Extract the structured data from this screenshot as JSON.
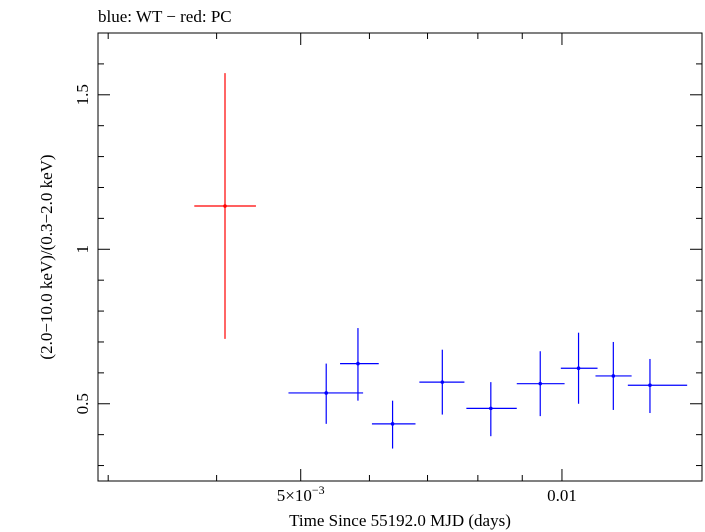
{
  "chart_data": {
    "type": "scatter",
    "title": "blue: WT − red: PC",
    "xlabel": "Time Since 55192.0 MJD (days)",
    "ylabel": "(2.0−10.0 keV)/(0.3−2.0 keV)",
    "x_scale": "log",
    "xlim": [
      0.00292,
      0.0145
    ],
    "ylim": [
      0.25,
      1.7
    ],
    "x_ticks": [
      {
        "value": 0.005,
        "label_main": "5×10",
        "label_exp": "−3"
      },
      {
        "value": 0.01,
        "label_main": "0.01",
        "label_exp": ""
      }
    ],
    "y_ticks": [
      {
        "value": 0.5,
        "label": "0.5"
      },
      {
        "value": 1.0,
        "label": "1"
      },
      {
        "value": 1.5,
        "label": "1.5"
      }
    ],
    "grid": false,
    "series": [
      {
        "name": "PC",
        "color": "#ff0000",
        "points": [
          {
            "x": 0.00409,
            "xlo": 0.00377,
            "xhi": 0.00444,
            "y": 1.14,
            "ylo": 0.71,
            "yhi": 1.57
          }
        ]
      },
      {
        "name": "WT",
        "color": "#0000ff",
        "points": [
          {
            "x": 0.00535,
            "xlo": 0.00484,
            "xhi": 0.0059,
            "y": 0.535,
            "ylo": 0.435,
            "yhi": 0.63
          },
          {
            "x": 0.00582,
            "xlo": 0.00555,
            "xhi": 0.00615,
            "y": 0.63,
            "ylo": 0.51,
            "yhi": 0.745
          },
          {
            "x": 0.00638,
            "xlo": 0.00604,
            "xhi": 0.00678,
            "y": 0.435,
            "ylo": 0.355,
            "yhi": 0.51
          },
          {
            "x": 0.00728,
            "xlo": 0.00685,
            "xhi": 0.00772,
            "y": 0.57,
            "ylo": 0.465,
            "yhi": 0.675
          },
          {
            "x": 0.00828,
            "xlo": 0.00776,
            "xhi": 0.00887,
            "y": 0.485,
            "ylo": 0.395,
            "yhi": 0.57
          },
          {
            "x": 0.00944,
            "xlo": 0.00887,
            "xhi": 0.01007,
            "y": 0.565,
            "ylo": 0.46,
            "yhi": 0.67
          },
          {
            "x": 0.01045,
            "xlo": 0.00997,
            "xhi": 0.01099,
            "y": 0.615,
            "ylo": 0.5,
            "yhi": 0.73
          },
          {
            "x": 0.01146,
            "xlo": 0.01093,
            "xhi": 0.01203,
            "y": 0.59,
            "ylo": 0.48,
            "yhi": 0.7
          },
          {
            "x": 0.01263,
            "xlo": 0.01191,
            "xhi": 0.01394,
            "y": 0.56,
            "ylo": 0.47,
            "yhi": 0.645
          }
        ]
      }
    ]
  }
}
